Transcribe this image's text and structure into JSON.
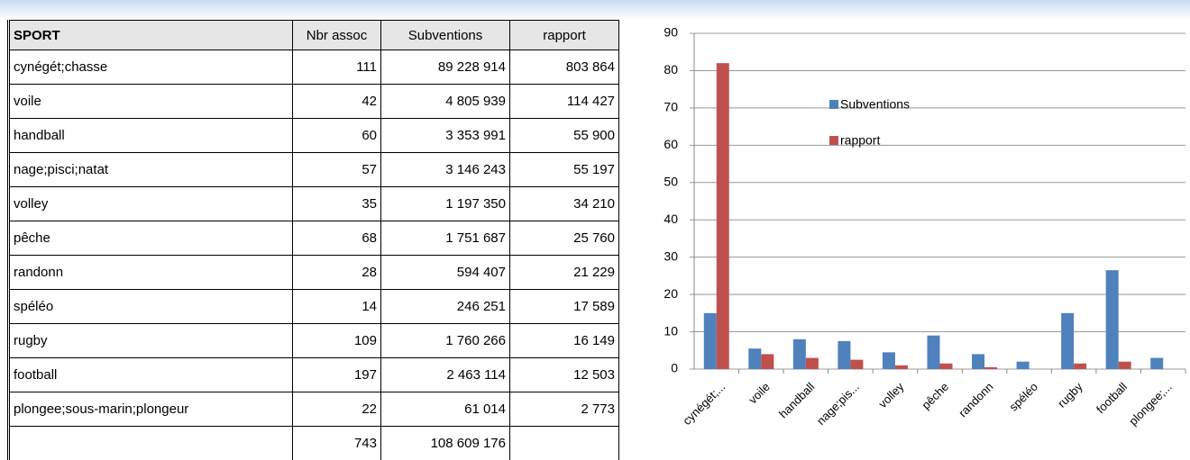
{
  "table": {
    "header": [
      "SPORT",
      "Nbr assoc",
      "Subventions",
      "rapport"
    ],
    "rows": [
      [
        "cynégét;chasse",
        "111",
        "89 228 914",
        "803 864"
      ],
      [
        "voile",
        "42",
        "4 805 939",
        "114 427"
      ],
      [
        "handball",
        "60",
        "3 353 991",
        "55 900"
      ],
      [
        "nage;pisci;natat",
        "57",
        "3 146 243",
        "55 197"
      ],
      [
        "volley",
        "35",
        "1 197 350",
        "34 210"
      ],
      [
        "pêche",
        "68",
        "1 751 687",
        "25 760"
      ],
      [
        "randonn",
        "28",
        "594 407",
        "21 229"
      ],
      [
        "spéléo",
        "14",
        "246 251",
        "17 589"
      ],
      [
        "rugby",
        "109",
        "1 760 266",
        "16 149"
      ],
      [
        "football",
        "197",
        "2 463 114",
        "12 503"
      ],
      [
        "plongee;sous-marin;plongeur",
        "22",
        "61 014",
        "2 773"
      ]
    ],
    "total": [
      "743",
      "108 609 176"
    ]
  },
  "chart_data": {
    "type": "bar",
    "categories": [
      "cynégét;...",
      "voile",
      "handball",
      "nage;pis...",
      "volley",
      "pêche",
      "randonn",
      "spéléo",
      "rugby",
      "football",
      "plongee;..."
    ],
    "series": [
      {
        "name": "Subventions",
        "color": "#4f81bd",
        "values": [
          15,
          5.5,
          8,
          7.5,
          4.5,
          9,
          4,
          2,
          15,
          26.5,
          3
        ]
      },
      {
        "name": "rapport",
        "color": "#c0504d",
        "values": [
          82,
          4,
          3,
          2.5,
          1,
          1.5,
          0.5,
          0,
          1.5,
          2,
          0
        ]
      }
    ],
    "ylim": [
      0,
      90
    ],
    "yticks": [
      0,
      10,
      20,
      30,
      40,
      50,
      60,
      70,
      80,
      90
    ],
    "grid": true,
    "legend": "inside-top"
  }
}
